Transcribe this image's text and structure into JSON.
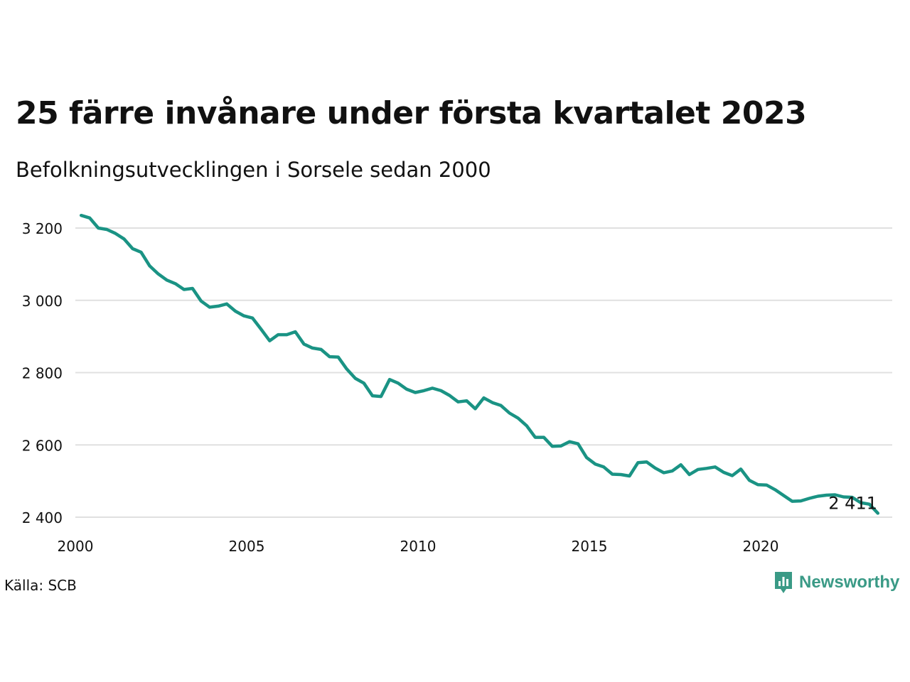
{
  "title": "25 färre invånare under första kvartalet 2023",
  "subtitle": "Befolkningsutvecklingen i Sorsele sedan 2000",
  "source": "Källa: SCB",
  "brand": {
    "name": "Newsworthy",
    "icon": "newsworthy-logo-icon",
    "color": "#3a9a86"
  },
  "colors": {
    "line": "#1a9384",
    "grid": "#e0e0e0"
  },
  "chart_data": {
    "type": "line",
    "xlim": [
      2000,
      2024
    ],
    "ylim": [
      2400,
      3260
    ],
    "yticks": [
      2400,
      2600,
      2800,
      3000,
      3200
    ],
    "ytick_labels": [
      "2 400",
      "2 600",
      "2 800",
      "3 000",
      "3 200"
    ],
    "xticks": [
      2000,
      2005,
      2010,
      2015,
      2020
    ],
    "xtick_labels": [
      "2000",
      "2005",
      "2010",
      "2015",
      "2020"
    ],
    "grid": true,
    "end_label": "2 411",
    "series": [
      {
        "values": [
          [
            2000.17,
            3235
          ],
          [
            2000.42,
            3228
          ],
          [
            2000.67,
            3200
          ],
          [
            2000.92,
            3196
          ],
          [
            2001.17,
            3185
          ],
          [
            2001.42,
            3170
          ],
          [
            2001.67,
            3143
          ],
          [
            2001.92,
            3133
          ],
          [
            2002.17,
            3095
          ],
          [
            2002.42,
            3073
          ],
          [
            2002.67,
            3056
          ],
          [
            2002.92,
            3046
          ],
          [
            2003.17,
            3030
          ],
          [
            2003.42,
            3033
          ],
          [
            2003.67,
            2998
          ],
          [
            2003.92,
            2981
          ],
          [
            2004.17,
            2984
          ],
          [
            2004.42,
            2990
          ],
          [
            2004.67,
            2970
          ],
          [
            2004.92,
            2957
          ],
          [
            2005.17,
            2951
          ],
          [
            2005.42,
            2920
          ],
          [
            2005.67,
            2888
          ],
          [
            2005.92,
            2905
          ],
          [
            2006.17,
            2905
          ],
          [
            2006.42,
            2913
          ],
          [
            2006.67,
            2879
          ],
          [
            2006.92,
            2868
          ],
          [
            2007.17,
            2864
          ],
          [
            2007.42,
            2844
          ],
          [
            2007.67,
            2843
          ],
          [
            2007.92,
            2810
          ],
          [
            2008.17,
            2784
          ],
          [
            2008.42,
            2771
          ],
          [
            2008.67,
            2736
          ],
          [
            2008.92,
            2734
          ],
          [
            2009.17,
            2781
          ],
          [
            2009.42,
            2771
          ],
          [
            2009.67,
            2754
          ],
          [
            2009.92,
            2745
          ],
          [
            2010.17,
            2750
          ],
          [
            2010.42,
            2757
          ],
          [
            2010.67,
            2750
          ],
          [
            2010.92,
            2737
          ],
          [
            2011.17,
            2719
          ],
          [
            2011.42,
            2722
          ],
          [
            2011.67,
            2700
          ],
          [
            2011.92,
            2730
          ],
          [
            2012.17,
            2717
          ],
          [
            2012.42,
            2709
          ],
          [
            2012.67,
            2688
          ],
          [
            2012.92,
            2674
          ],
          [
            2013.17,
            2653
          ],
          [
            2013.42,
            2621
          ],
          [
            2013.67,
            2621
          ],
          [
            2013.92,
            2596
          ],
          [
            2014.17,
            2597
          ],
          [
            2014.42,
            2609
          ],
          [
            2014.67,
            2603
          ],
          [
            2014.92,
            2565
          ],
          [
            2015.17,
            2547
          ],
          [
            2015.42,
            2539
          ],
          [
            2015.67,
            2519
          ],
          [
            2015.92,
            2518
          ],
          [
            2016.17,
            2514
          ],
          [
            2016.42,
            2551
          ],
          [
            2016.67,
            2553
          ],
          [
            2016.92,
            2536
          ],
          [
            2017.17,
            2523
          ],
          [
            2017.42,
            2528
          ],
          [
            2017.67,
            2545
          ],
          [
            2017.92,
            2518
          ],
          [
            2018.17,
            2532
          ],
          [
            2018.42,
            2535
          ],
          [
            2018.67,
            2539
          ],
          [
            2018.92,
            2524
          ],
          [
            2019.17,
            2515
          ],
          [
            2019.42,
            2533
          ],
          [
            2019.67,
            2502
          ],
          [
            2019.92,
            2490
          ],
          [
            2020.17,
            2489
          ],
          [
            2020.42,
            2476
          ],
          [
            2020.67,
            2460
          ],
          [
            2020.92,
            2444
          ],
          [
            2021.17,
            2445
          ],
          [
            2021.42,
            2452
          ],
          [
            2021.67,
            2458
          ],
          [
            2021.92,
            2461
          ],
          [
            2022.17,
            2462
          ],
          [
            2022.42,
            2456
          ],
          [
            2022.67,
            2455
          ],
          [
            2022.92,
            2440
          ],
          [
            2023.17,
            2436
          ],
          [
            2023.42,
            2411
          ]
        ]
      }
    ]
  }
}
